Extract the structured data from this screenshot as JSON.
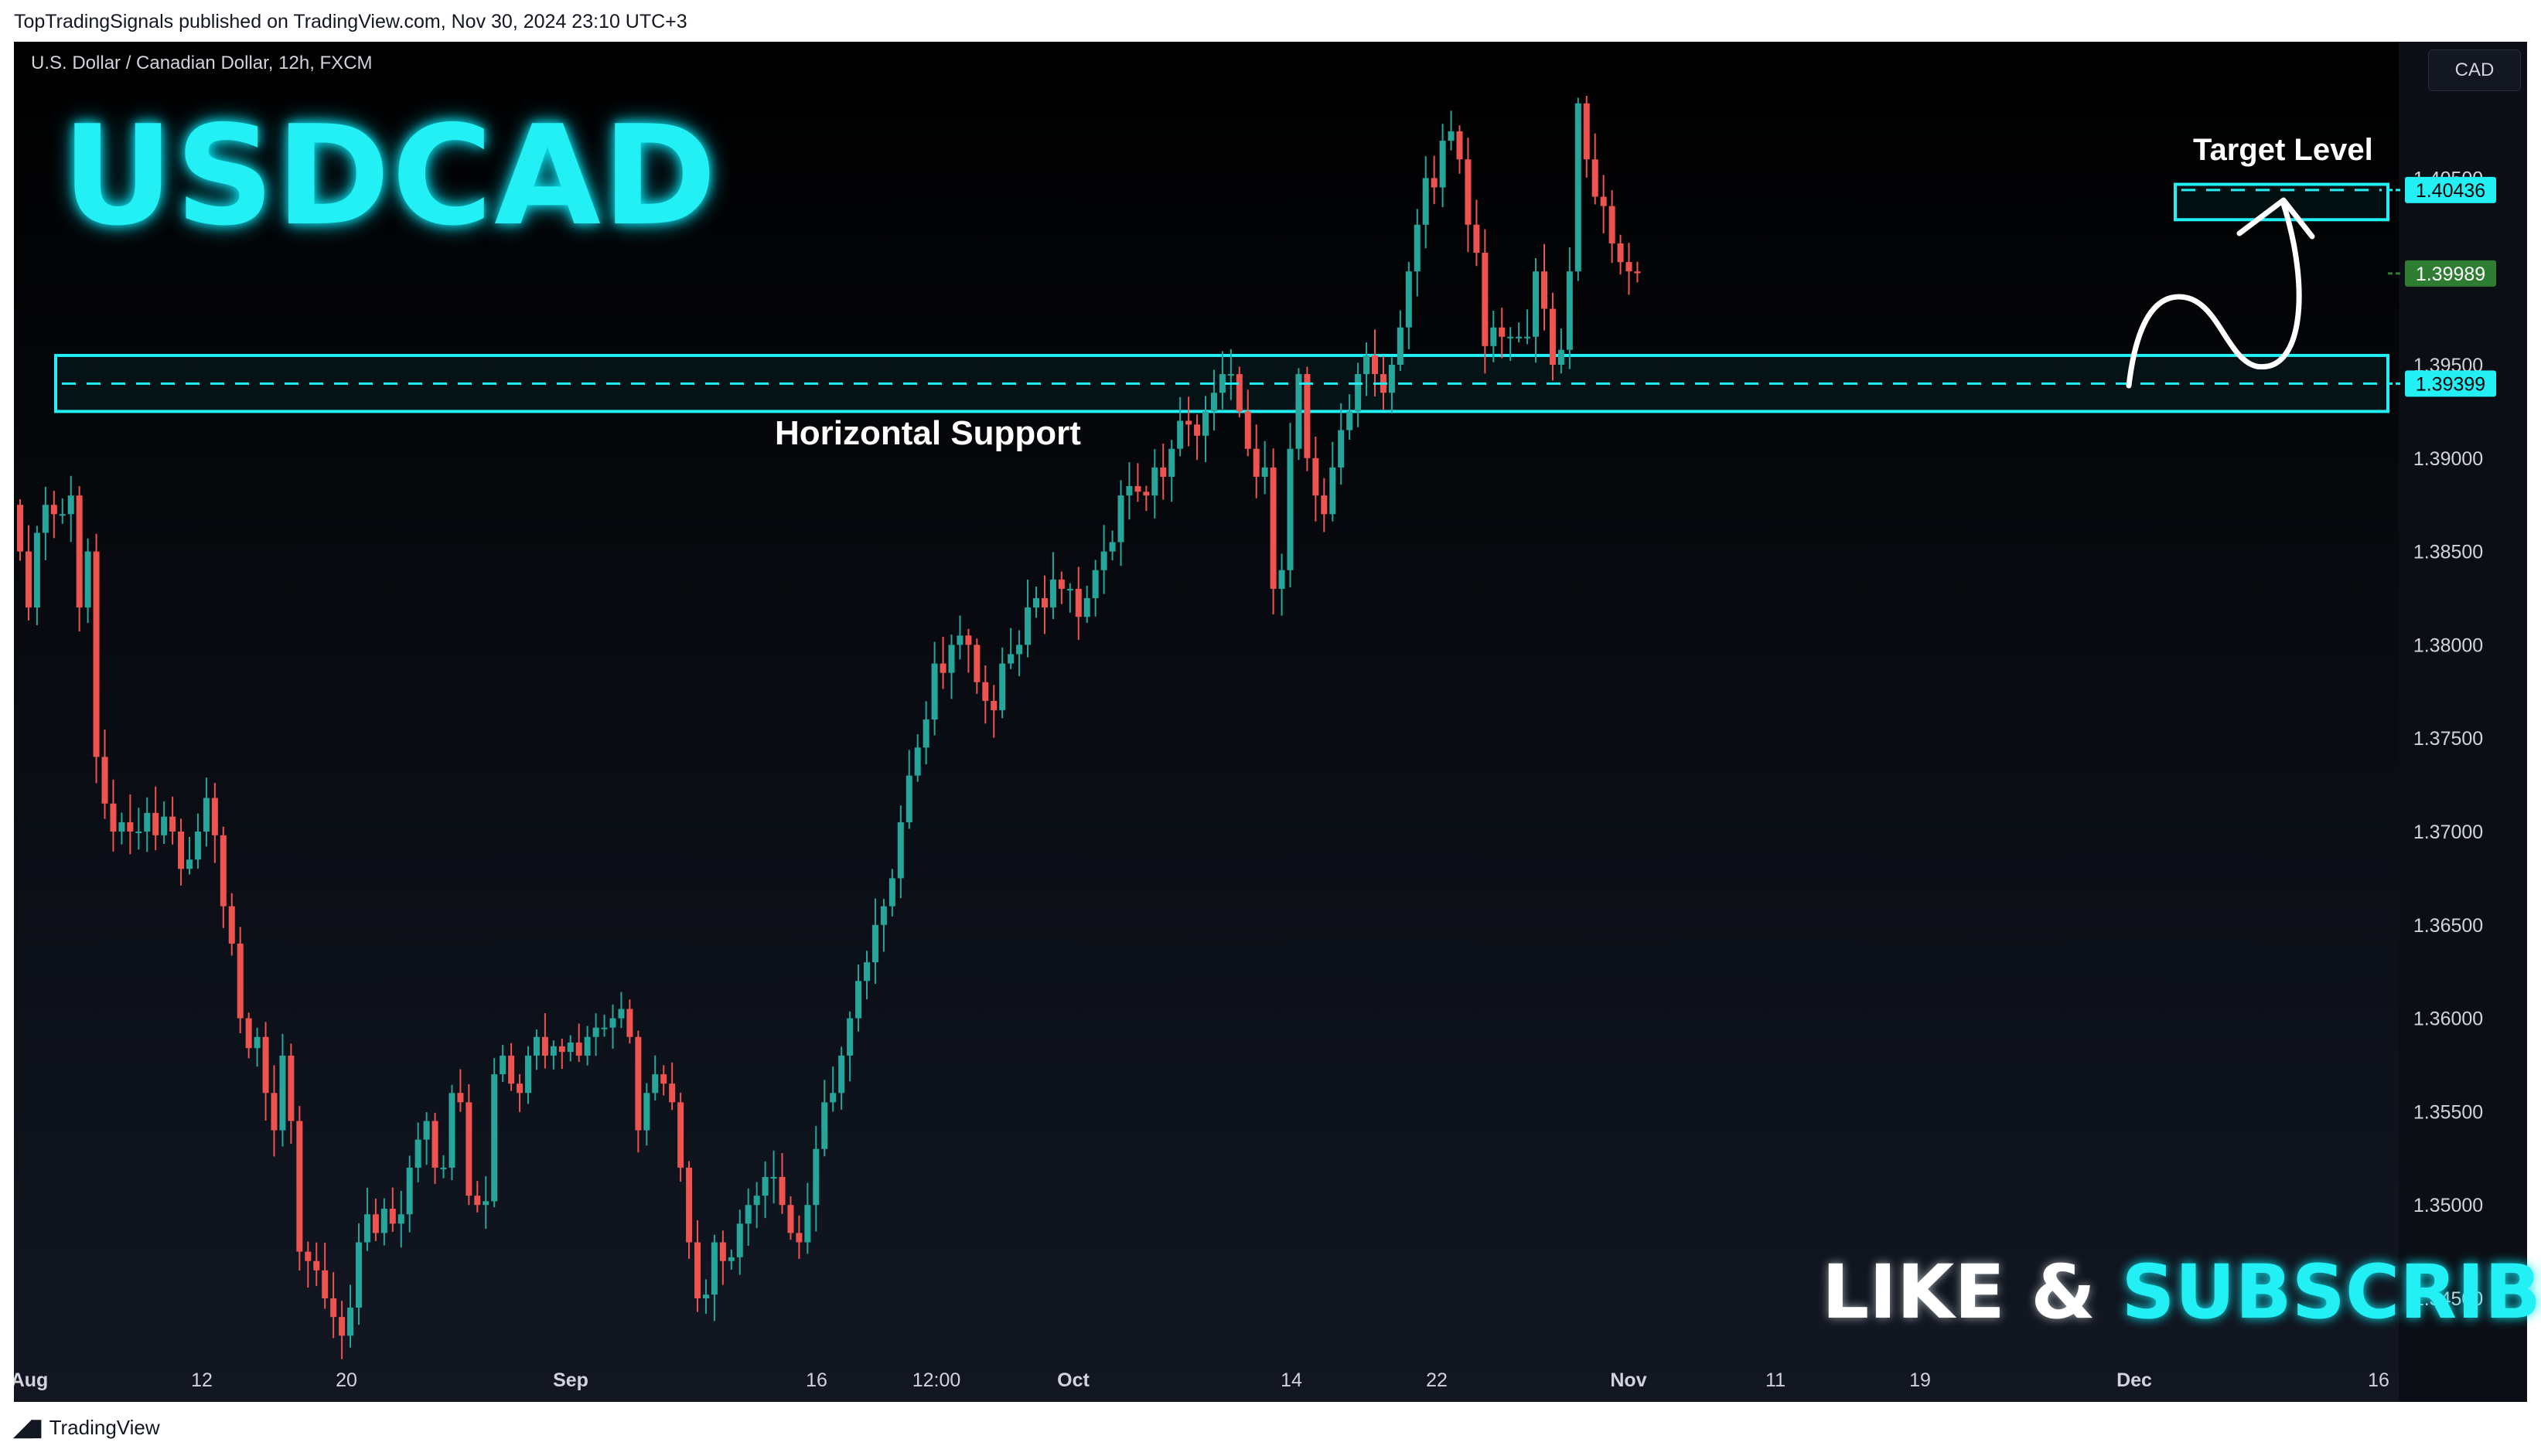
{
  "header": {
    "published_line": "TopTradingSignals published on TradingView.com, Nov 30, 2024 23:10 UTC+3"
  },
  "chart": {
    "symbol_title": "U.S. Dollar / Canadian Dollar, 12h, FXCM",
    "currency": "CAD",
    "big_title": "USDCAD",
    "support_label": "Horizontal Support",
    "target_label": "Target Level",
    "cta_part1": "LIKE & ",
    "cta_part2": "SUBSCRIBE",
    "price_tags": {
      "target": "1.40436",
      "last": "1.39989",
      "support": "1.39399"
    }
  },
  "footer": {
    "brand": "TradingView",
    "icon": "tradingview-logo-icon"
  },
  "colors": {
    "up": "#26a69a",
    "down": "#ef5350",
    "accent": "#22f0f5",
    "last_price": "#2e7d32"
  },
  "chart_data": {
    "type": "candlestick",
    "title": "U.S. Dollar / Canadian Dollar, 12h, FXCM",
    "ylim": [
      1.342,
      1.411
    ],
    "y_ticks": [
      "1.34500",
      "1.35000",
      "1.35500",
      "1.36000",
      "1.36500",
      "1.37000",
      "1.37500",
      "1.38000",
      "1.38500",
      "1.39000",
      "1.39500",
      "1.40500"
    ],
    "x_ticks": [
      "Aug",
      "12",
      "20",
      "Sep",
      "16",
      "12:00",
      "Oct",
      "14",
      "22",
      "Nov",
      "11",
      "19",
      "Dec",
      "16"
    ],
    "levels": {
      "support_zone": [
        1.3925,
        1.3955
      ],
      "support_line": 1.39399,
      "target_zone": [
        1.4031,
        1.4045
      ],
      "target_line": 1.40436,
      "last_price": 1.39989
    },
    "close_path": [
      1.385,
      1.382,
      1.386,
      1.3875,
      1.387,
      1.387,
      1.388,
      1.382,
      1.385,
      1.374,
      1.3715,
      1.37,
      1.3705,
      1.37,
      1.37,
      1.371,
      1.3698,
      1.3708,
      1.37,
      1.368,
      1.3685,
      1.37,
      1.3718,
      1.3698,
      1.366,
      1.364,
      1.36,
      1.3584,
      1.359,
      1.356,
      1.354,
      1.358,
      1.3545,
      1.3475,
      1.347,
      1.3465,
      1.345,
      1.344,
      1.343,
      1.3445,
      1.348,
      1.3495,
      1.3485,
      1.3498,
      1.349,
      1.3495,
      1.352,
      1.3535,
      1.3545,
      1.352,
      1.352,
      1.356,
      1.3555,
      1.3505,
      1.35,
      1.3502,
      1.357,
      1.358,
      1.3565,
      1.356,
      1.358,
      1.359,
      1.358,
      1.3585,
      1.3582,
      1.3587,
      1.358,
      1.359,
      1.3595,
      1.3595,
      1.36,
      1.3605,
      1.359,
      1.354,
      1.356,
      1.357,
      1.3565,
      1.3555,
      1.352,
      1.348,
      1.345,
      1.3452,
      1.348,
      1.347,
      1.3472,
      1.349,
      1.35,
      1.3505,
      1.3515,
      1.3515,
      1.35,
      1.3485,
      1.348,
      1.35,
      1.353,
      1.3555,
      1.356,
      1.358,
      1.36,
      1.362,
      1.363,
      1.365,
      1.366,
      1.3675,
      1.3705,
      1.373,
      1.3745,
      1.376,
      1.379,
      1.3785,
      1.38,
      1.3805,
      1.38,
      1.378,
      1.377,
      1.3765,
      1.379,
      1.3795,
      1.38,
      1.382,
      1.3825,
      1.382,
      1.3835,
      1.383,
      1.383,
      1.3815,
      1.3825,
      1.384,
      1.385,
      1.3855,
      1.388,
      1.3885,
      1.3882,
      1.388,
      1.3895,
      1.389,
      1.3905,
      1.392,
      1.3918,
      1.3912,
      1.3925,
      1.3935,
      1.3945,
      1.3945,
      1.3925,
      1.3905,
      1.389,
      1.3895,
      1.383,
      1.384,
      1.3905,
      1.3945,
      1.39,
      1.388,
      1.387,
      1.3895,
      1.3915,
      1.3925,
      1.3945,
      1.3955,
      1.3945,
      1.3935,
      1.395,
      1.397,
      1.4,
      1.4025,
      1.405,
      1.4045,
      1.407,
      1.4075,
      1.406,
      1.4025,
      1.401,
      1.396,
      1.397,
      1.3965,
      1.3965,
      1.3965,
      1.3965,
      1.4,
      1.398,
      1.395,
      1.3958,
      1.4,
      1.409,
      1.406,
      1.404,
      1.4035,
      1.4015,
      1.4005,
      1.4,
      1.3999
    ]
  }
}
